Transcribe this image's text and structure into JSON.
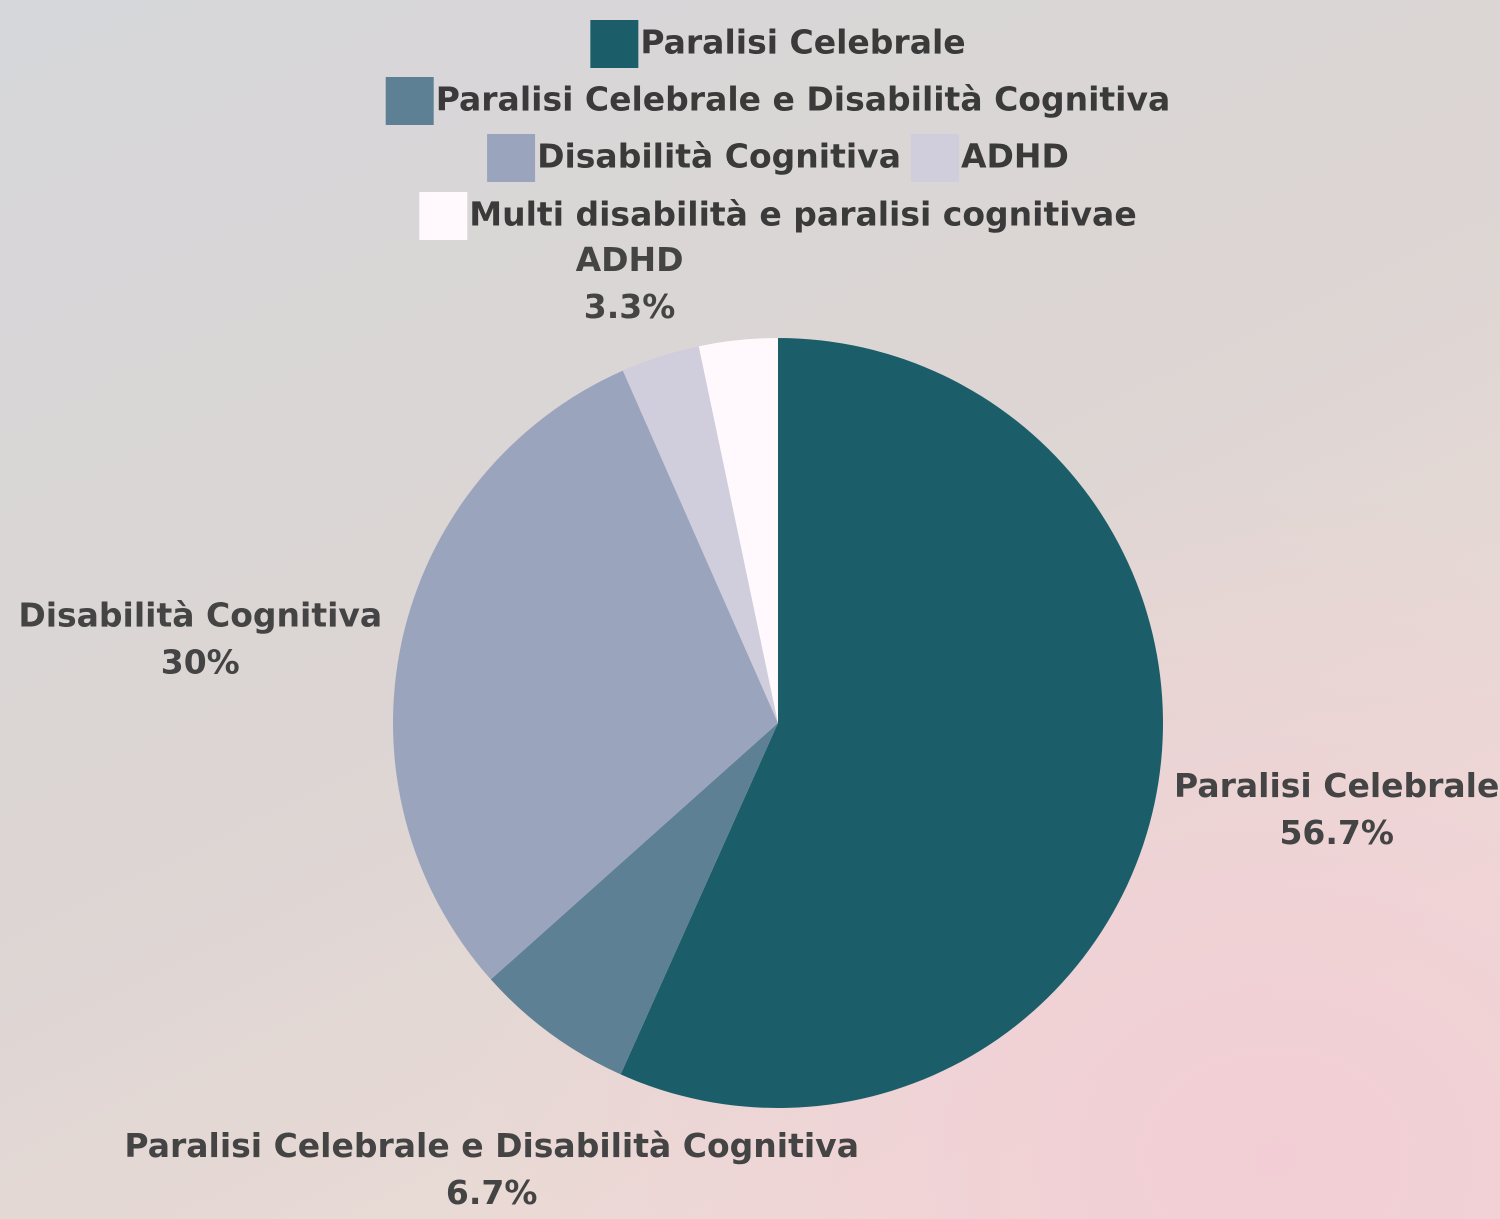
{
  "chart_data": {
    "type": "pie",
    "categories": [
      "Paralisi Celebrale",
      "Paralisi Celebrale e Disabilità Cognitiva",
      "Disabilità Cognitiva",
      "ADHD",
      "Multi disabilità e paralisi cognitivae"
    ],
    "values": [
      56.7,
      6.7,
      30,
      3.3,
      3.3
    ],
    "value_labels": [
      "56.7%",
      "6.7%",
      "30%",
      "3.3%",
      null
    ],
    "colors": [
      "#1b5e6a",
      "#5e8094",
      "#9aa5bd",
      "#d0cedd",
      "#fff8fc"
    ],
    "legend": "top"
  }
}
